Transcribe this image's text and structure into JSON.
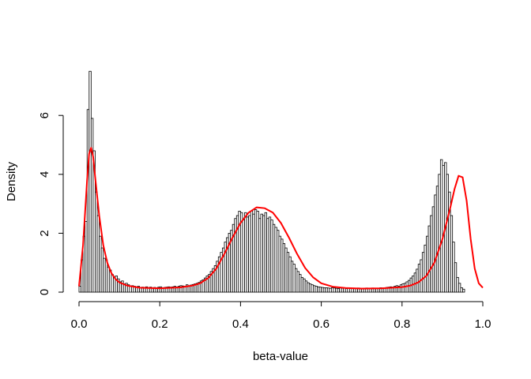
{
  "chart_data": {
    "type": "histogram",
    "title": "",
    "xlabel": "beta-value",
    "ylabel": "Density",
    "xlim": [
      0,
      1
    ],
    "ylim": [
      0,
      7.6
    ],
    "x_ticks": [
      0.0,
      0.2,
      0.4,
      0.6,
      0.8,
      1.0
    ],
    "x_tick_labels": [
      "0.0",
      "0.2",
      "0.4",
      "0.6",
      "0.8",
      "1.0"
    ],
    "y_ticks": [
      0,
      2,
      4,
      6
    ],
    "y_tick_labels": [
      "0",
      "2",
      "4",
      "6"
    ],
    "grid": false,
    "legend": "none",
    "histogram": {
      "bin_width": 0.005,
      "bin_start": 0.0,
      "densities": [
        0.2,
        1.1,
        1.9,
        2.4,
        6.2,
        7.5,
        5.9,
        4.8,
        3.4,
        2.6,
        1.9,
        1.5,
        1.15,
        1.1,
        0.85,
        0.75,
        0.6,
        0.5,
        0.55,
        0.45,
        0.35,
        0.38,
        0.28,
        0.3,
        0.25,
        0.2,
        0.22,
        0.2,
        0.18,
        0.2,
        0.15,
        0.17,
        0.16,
        0.18,
        0.15,
        0.17,
        0.14,
        0.16,
        0.15,
        0.17,
        0.18,
        0.15,
        0.16,
        0.17,
        0.18,
        0.17,
        0.18,
        0.2,
        0.17,
        0.2,
        0.22,
        0.21,
        0.2,
        0.25,
        0.22,
        0.24,
        0.26,
        0.28,
        0.3,
        0.33,
        0.38,
        0.42,
        0.48,
        0.55,
        0.6,
        0.7,
        0.8,
        0.9,
        1.05,
        1.2,
        1.35,
        1.5,
        1.7,
        1.85,
        2.0,
        2.1,
        2.3,
        2.5,
        2.6,
        2.75,
        2.7,
        2.45,
        2.7,
        2.55,
        2.6,
        2.75,
        2.65,
        2.8,
        2.75,
        2.5,
        2.65,
        2.6,
        2.7,
        2.5,
        2.55,
        2.45,
        2.3,
        2.2,
        2.1,
        1.9,
        1.8,
        1.65,
        1.5,
        1.35,
        1.2,
        1.05,
        0.95,
        0.8,
        0.7,
        0.6,
        0.5,
        0.45,
        0.38,
        0.32,
        0.28,
        0.25,
        0.22,
        0.2,
        0.18,
        0.17,
        0.16,
        0.15,
        0.15,
        0.14,
        0.13,
        0.15,
        0.14,
        0.13,
        0.12,
        0.14,
        0.13,
        0.14,
        0.12,
        0.13,
        0.14,
        0.12,
        0.13,
        0.12,
        0.14,
        0.13,
        0.12,
        0.13,
        0.14,
        0.13,
        0.12,
        0.14,
        0.13,
        0.12,
        0.13,
        0.15,
        0.14,
        0.13,
        0.16,
        0.17,
        0.18,
        0.17,
        0.2,
        0.22,
        0.2,
        0.25,
        0.28,
        0.3,
        0.35,
        0.4,
        0.48,
        0.55,
        0.65,
        0.78,
        0.95,
        1.1,
        1.35,
        1.6,
        1.9,
        2.25,
        2.6,
        2.9,
        3.3,
        3.6,
        4.0,
        4.5,
        4.3,
        4.4,
        4.0,
        3.4,
        2.6,
        1.7,
        1.0,
        0.5,
        0.3,
        0.15,
        0.1
      ],
      "bar_color": "#ffffff",
      "bar_border_color": "#000000"
    },
    "density_curve": {
      "color": "#ff0000",
      "x": [
        0.0,
        0.01,
        0.02,
        0.025,
        0.03,
        0.035,
        0.04,
        0.05,
        0.06,
        0.07,
        0.08,
        0.09,
        0.1,
        0.12,
        0.15,
        0.2,
        0.25,
        0.28,
        0.3,
        0.32,
        0.34,
        0.36,
        0.38,
        0.4,
        0.42,
        0.44,
        0.46,
        0.48,
        0.5,
        0.52,
        0.54,
        0.56,
        0.58,
        0.6,
        0.63,
        0.66,
        0.7,
        0.75,
        0.8,
        0.82,
        0.84,
        0.86,
        0.88,
        0.9,
        0.91,
        0.92,
        0.93,
        0.94,
        0.95,
        0.96,
        0.97,
        0.98,
        0.99,
        1.0
      ],
      "y": [
        0.2,
        1.6,
        3.8,
        4.7,
        4.9,
        4.6,
        3.9,
        2.6,
        1.6,
        1.0,
        0.65,
        0.45,
        0.33,
        0.22,
        0.15,
        0.13,
        0.16,
        0.22,
        0.3,
        0.48,
        0.8,
        1.3,
        1.85,
        2.35,
        2.7,
        2.88,
        2.85,
        2.7,
        2.35,
        1.85,
        1.3,
        0.82,
        0.5,
        0.3,
        0.18,
        0.14,
        0.12,
        0.13,
        0.17,
        0.22,
        0.33,
        0.55,
        1.0,
        1.8,
        2.35,
        2.9,
        3.5,
        3.95,
        3.9,
        3.1,
        1.8,
        0.8,
        0.3,
        0.15
      ]
    }
  }
}
